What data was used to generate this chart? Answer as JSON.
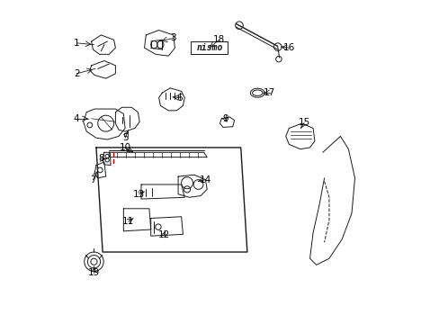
{
  "bg_color": "#ffffff",
  "line_color": "#1a1a1a",
  "label_color": "#000000",
  "red_line_color": "#cc0000",
  "figsize": [
    4.89,
    3.6
  ],
  "dpi": 100
}
